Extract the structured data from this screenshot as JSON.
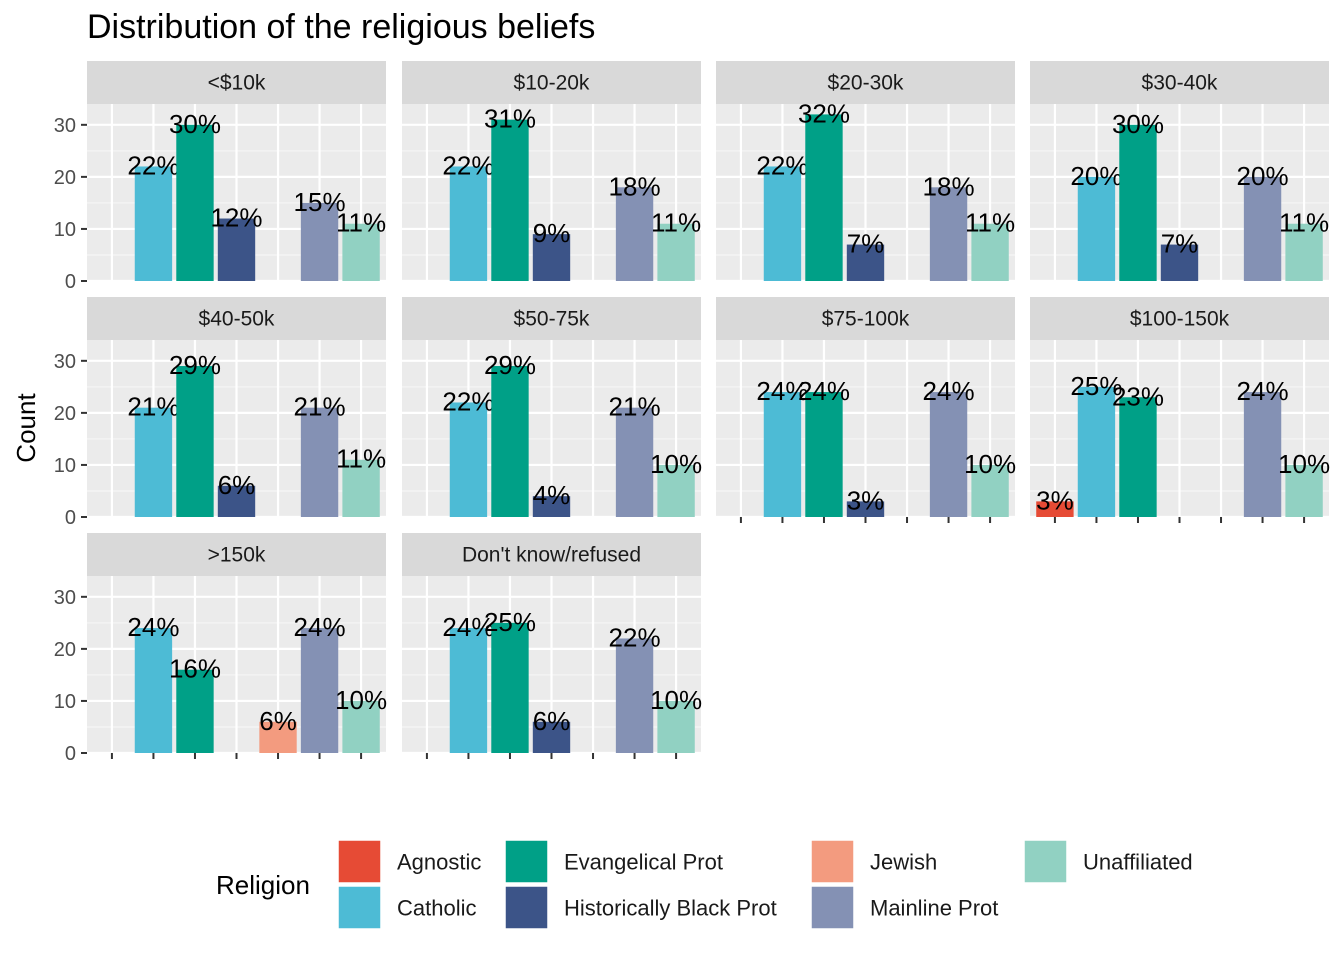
{
  "chart_data": {
    "type": "bar",
    "title": "Distribution of the religious beliefs",
    "ylabel": "Count",
    "xlabel": "",
    "ylim": [
      0,
      34
    ],
    "y_ticks": [
      0,
      10,
      20,
      30
    ],
    "x_tick_labels_shown": false,
    "grid": true,
    "legend_title": "Religion",
    "legend_position": "bottom",
    "categories": [
      "Agnostic",
      "Catholic",
      "Evangelical Prot",
      "Historically Black Prot",
      "Jewish",
      "Mainline Prot",
      "Unaffiliated"
    ],
    "colors": {
      "Agnostic": "#E64B35",
      "Catholic": "#4DBBD5",
      "Evangelical Prot": "#00A087",
      "Historically Black Prot": "#3C5488",
      "Jewish": "#F39B7F",
      "Mainline Prot": "#8491B4",
      "Unaffiliated": "#91D1C2"
    },
    "legend_order": [
      "Agnostic",
      "Catholic",
      "Evangelical Prot",
      "Historically Black Prot",
      "Jewish",
      "Mainline Prot",
      "Unaffiliated"
    ],
    "panels": [
      {
        "facet": "<$10k",
        "bars": [
          {
            "religion": "Catholic",
            "value": 22,
            "label": "22%"
          },
          {
            "religion": "Evangelical Prot",
            "value": 30,
            "label": "30%"
          },
          {
            "religion": "Historically Black Prot",
            "value": 12,
            "label": "12%"
          },
          {
            "religion": "Mainline Prot",
            "value": 15,
            "label": "15%"
          },
          {
            "religion": "Unaffiliated",
            "value": 11,
            "label": "11%"
          }
        ]
      },
      {
        "facet": "$10-20k",
        "bars": [
          {
            "religion": "Catholic",
            "value": 22,
            "label": "22%"
          },
          {
            "religion": "Evangelical Prot",
            "value": 31,
            "label": "31%"
          },
          {
            "religion": "Historically Black Prot",
            "value": 9,
            "label": "9%"
          },
          {
            "religion": "Mainline Prot",
            "value": 18,
            "label": "18%"
          },
          {
            "religion": "Unaffiliated",
            "value": 11,
            "label": "11%"
          }
        ]
      },
      {
        "facet": "$20-30k",
        "bars": [
          {
            "religion": "Catholic",
            "value": 22,
            "label": "22%"
          },
          {
            "religion": "Evangelical Prot",
            "value": 32,
            "label": "32%"
          },
          {
            "religion": "Historically Black Prot",
            "value": 7,
            "label": "7%"
          },
          {
            "religion": "Mainline Prot",
            "value": 18,
            "label": "18%"
          },
          {
            "religion": "Unaffiliated",
            "value": 11,
            "label": "11%"
          }
        ]
      },
      {
        "facet": "$30-40k",
        "bars": [
          {
            "religion": "Catholic",
            "value": 20,
            "label": "20%"
          },
          {
            "religion": "Evangelical Prot",
            "value": 30,
            "label": "30%"
          },
          {
            "religion": "Historically Black Prot",
            "value": 7,
            "label": "7%"
          },
          {
            "religion": "Mainline Prot",
            "value": 20,
            "label": "20%"
          },
          {
            "religion": "Unaffiliated",
            "value": 11,
            "label": "11%"
          }
        ]
      },
      {
        "facet": "$40-50k",
        "bars": [
          {
            "religion": "Catholic",
            "value": 21,
            "label": "21%"
          },
          {
            "religion": "Evangelical Prot",
            "value": 29,
            "label": "29%"
          },
          {
            "religion": "Historically Black Prot",
            "value": 6,
            "label": "6%"
          },
          {
            "religion": "Mainline Prot",
            "value": 21,
            "label": "21%"
          },
          {
            "religion": "Unaffiliated",
            "value": 11,
            "label": "11%"
          }
        ]
      },
      {
        "facet": "$50-75k",
        "bars": [
          {
            "religion": "Catholic",
            "value": 22,
            "label": "22%"
          },
          {
            "religion": "Evangelical Prot",
            "value": 29,
            "label": "29%"
          },
          {
            "religion": "Historically Black Prot",
            "value": 4,
            "label": "4%"
          },
          {
            "religion": "Mainline Prot",
            "value": 21,
            "label": "21%"
          },
          {
            "religion": "Unaffiliated",
            "value": 10,
            "label": "10%"
          }
        ]
      },
      {
        "facet": "$75-100k",
        "bars": [
          {
            "religion": "Catholic",
            "value": 24,
            "label": "24%"
          },
          {
            "religion": "Evangelical Prot",
            "value": 24,
            "label": "24%"
          },
          {
            "religion": "Historically Black Prot",
            "value": 3,
            "label": "3%"
          },
          {
            "religion": "Mainline Prot",
            "value": 24,
            "label": "24%"
          },
          {
            "religion": "Unaffiliated",
            "value": 10,
            "label": "10%"
          }
        ]
      },
      {
        "facet": "$100-150k",
        "bars": [
          {
            "religion": "Agnostic",
            "value": 3,
            "label": "3%"
          },
          {
            "religion": "Catholic",
            "value": 25,
            "label": "25%"
          },
          {
            "religion": "Evangelical Prot",
            "value": 23,
            "label": "23%"
          },
          {
            "religion": "Mainline Prot",
            "value": 24,
            "label": "24%"
          },
          {
            "religion": "Unaffiliated",
            "value": 10,
            "label": "10%"
          }
        ]
      },
      {
        "facet": ">150k",
        "bars": [
          {
            "religion": "Catholic",
            "value": 24,
            "label": "24%"
          },
          {
            "religion": "Evangelical Prot",
            "value": 16,
            "label": "16%"
          },
          {
            "religion": "Jewish",
            "value": 6,
            "label": "6%"
          },
          {
            "religion": "Mainline Prot",
            "value": 24,
            "label": "24%"
          },
          {
            "religion": "Unaffiliated",
            "value": 10,
            "label": "10%"
          }
        ]
      },
      {
        "facet": "Don't know/refused",
        "bars": [
          {
            "religion": "Catholic",
            "value": 24,
            "label": "24%"
          },
          {
            "religion": "Evangelical Prot",
            "value": 25,
            "label": "25%"
          },
          {
            "religion": "Historically Black Prot",
            "value": 6,
            "label": "6%"
          },
          {
            "religion": "Mainline Prot",
            "value": 22,
            "label": "22%"
          },
          {
            "religion": "Unaffiliated",
            "value": 10,
            "label": "10%"
          }
        ]
      }
    ]
  }
}
